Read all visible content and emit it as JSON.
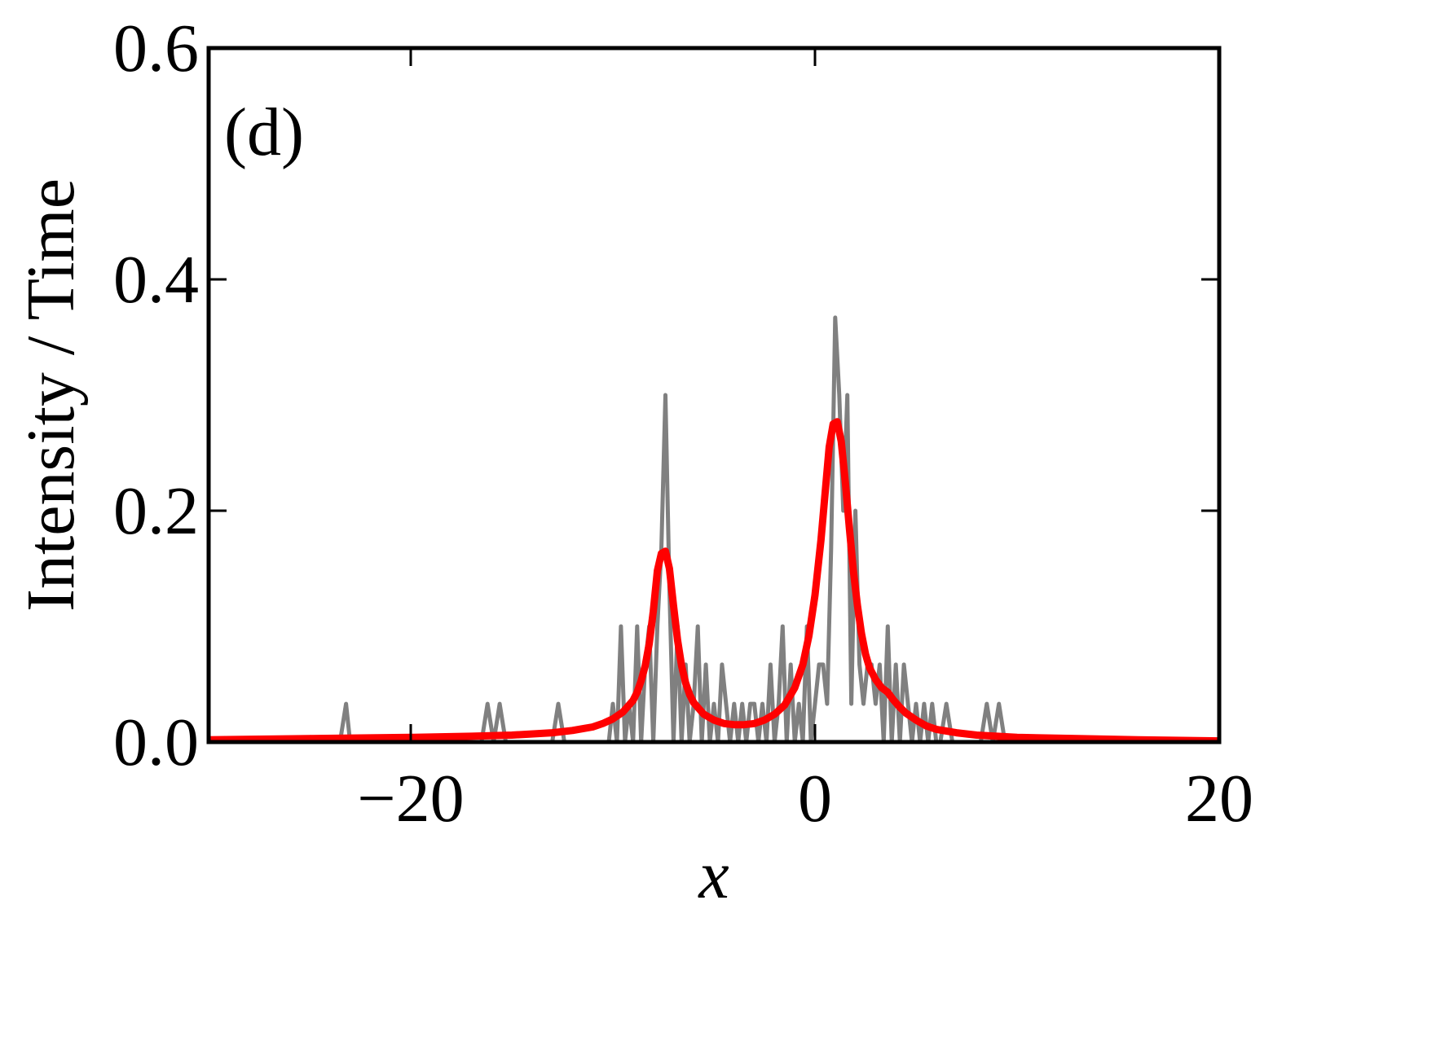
{
  "chart_data": {
    "type": "line",
    "panel_label": "(d)",
    "title": "",
    "xlabel": "x",
    "ylabel": "Intensity / Time",
    "xlim": [
      -30,
      20
    ],
    "ylim": [
      0,
      0.6
    ],
    "xticks": [
      -20,
      0,
      20
    ],
    "xtick_labels": [
      "−20",
      "0",
      "20"
    ],
    "yticks": [
      0.0,
      0.2,
      0.4,
      0.6
    ],
    "ytick_labels": [
      "0.0",
      "0.2",
      "0.4",
      "0.6"
    ],
    "grid": false,
    "legend": "none",
    "series": [
      {
        "color": "#808080",
        "x": [
          -30,
          -23.5,
          -23.2,
          -23,
          -16.5,
          -16.2,
          -15.9,
          -15.6,
          -15.3,
          -13,
          -12.7,
          -12.4,
          -10.2,
          -10,
          -9.8,
          -9.6,
          -9.4,
          -9.2,
          -9,
          -8.8,
          -8.6,
          -8.4,
          -8.2,
          -8,
          -7.8,
          -7.6,
          -7.4,
          -7.2,
          -7,
          -6.8,
          -6.6,
          -6.4,
          -6.2,
          -6,
          -5.8,
          -5.6,
          -5.4,
          -5.2,
          -5,
          -4.8,
          -4.6,
          -4.4,
          -4.2,
          -4,
          -3.8,
          -3.6,
          -3.4,
          -3.2,
          -3,
          -2.8,
          -2.6,
          -2.4,
          -2.2,
          -2,
          -1.8,
          -1.6,
          -1.4,
          -1.2,
          -1,
          -0.8,
          -0.6,
          -0.4,
          -0.2,
          0,
          0.2,
          0.4,
          0.6,
          0.8,
          1,
          1.2,
          1.4,
          1.6,
          1.8,
          2,
          2.2,
          2.4,
          2.6,
          2.8,
          3,
          3.2,
          3.4,
          3.6,
          3.8,
          4,
          4.2,
          4.4,
          4.6,
          4.8,
          5,
          5.2,
          5.4,
          5.6,
          5.8,
          6,
          6.2,
          6.5,
          6.8,
          8.2,
          8.5,
          8.8,
          9.1,
          9.4,
          20
        ],
        "y": [
          0,
          0,
          0.033,
          0,
          0,
          0.033,
          0,
          0.033,
          0,
          0,
          0.033,
          0,
          0,
          0.033,
          0,
          0.1,
          0,
          0.033,
          0,
          0.1,
          0,
          0.067,
          0.1,
          0,
          0.1,
          0.167,
          0.3,
          0.133,
          0,
          0.1,
          0,
          0.067,
          0,
          0.033,
          0.1,
          0,
          0.067,
          0,
          0.033,
          0,
          0.067,
          0.033,
          0,
          0.033,
          0,
          0.033,
          0,
          0.033,
          0.033,
          0,
          0.033,
          0,
          0.067,
          0,
          0.033,
          0.1,
          0,
          0.067,
          0,
          0.033,
          0,
          0.1,
          0,
          0.033,
          0.067,
          0.067,
          0.033,
          0.167,
          0.367,
          0.3,
          0.2,
          0.3,
          0.033,
          0.2,
          0.067,
          0.033,
          0.067,
          0.067,
          0.033,
          0.067,
          0,
          0.1,
          0,
          0.067,
          0,
          0.067,
          0.033,
          0,
          0.033,
          0,
          0.033,
          0,
          0.033,
          0,
          0,
          0.033,
          0,
          0,
          0.033,
          0,
          0.033,
          0,
          0
        ]
      },
      {
        "color": "#ff0000",
        "x": [
          -30,
          -25,
          -20,
          -17,
          -15,
          -13,
          -12,
          -11,
          -10.5,
          -10,
          -9.5,
          -9,
          -8.8,
          -8.6,
          -8.4,
          -8.2,
          -8,
          -7.8,
          -7.6,
          -7.4,
          -7.2,
          -7,
          -6.8,
          -6.6,
          -6.4,
          -6.2,
          -6,
          -5.5,
          -5,
          -4.5,
          -4,
          -3.5,
          -3,
          -2.5,
          -2,
          -1.5,
          -1,
          -0.6,
          -0.3,
          0,
          0.3,
          0.5,
          0.7,
          0.9,
          1.1,
          1.3,
          1.5,
          1.7,
          1.9,
          2.1,
          2.3,
          2.5,
          2.7,
          3,
          3.3,
          3.6,
          3.9,
          4.2,
          4.5,
          5,
          5.5,
          6,
          7,
          8,
          10,
          13,
          16,
          20
        ],
        "y": [
          0.002,
          0.003,
          0.004,
          0.005,
          0.006,
          0.008,
          0.01,
          0.013,
          0.016,
          0.02,
          0.026,
          0.036,
          0.043,
          0.053,
          0.066,
          0.085,
          0.113,
          0.148,
          0.163,
          0.165,
          0.15,
          0.118,
          0.088,
          0.066,
          0.051,
          0.041,
          0.034,
          0.024,
          0.019,
          0.016,
          0.015,
          0.015,
          0.016,
          0.019,
          0.024,
          0.032,
          0.047,
          0.067,
          0.092,
          0.127,
          0.175,
          0.215,
          0.255,
          0.275,
          0.277,
          0.26,
          0.225,
          0.185,
          0.148,
          0.118,
          0.094,
          0.076,
          0.064,
          0.054,
          0.047,
          0.043,
          0.036,
          0.03,
          0.025,
          0.019,
          0.014,
          0.011,
          0.008,
          0.006,
          0.004,
          0.003,
          0.002,
          0.001
        ]
      }
    ]
  }
}
